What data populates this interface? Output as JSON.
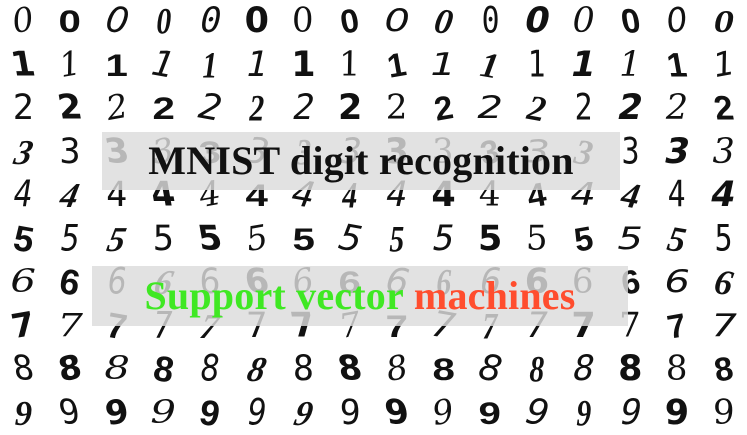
{
  "title": "MNIST digit recognition",
  "subtitle": {
    "part_1": "Support vector",
    "part_2": "machines"
  },
  "digits": {
    "rows": [
      [
        "0",
        "0",
        "0",
        "0",
        "0",
        "0",
        "0",
        "0",
        "0",
        "0",
        "0",
        "0",
        "0",
        "0",
        "0",
        "0"
      ],
      [
        "1",
        "1",
        "1",
        "1",
        "1",
        "1",
        "1",
        "1",
        "1",
        "1",
        "1",
        "1",
        "1",
        "1",
        "1",
        "1"
      ],
      [
        "2",
        "2",
        "2",
        "2",
        "2",
        "2",
        "2",
        "2",
        "2",
        "2",
        "2",
        "2",
        "2",
        "2",
        "2",
        "2"
      ],
      [
        "3",
        "3",
        "3",
        "3",
        "3",
        "3",
        "3",
        "3",
        "3",
        "3",
        "3",
        "3",
        "3",
        "3",
        "3",
        "3"
      ],
      [
        "4",
        "4",
        "4",
        "4",
        "4",
        "4",
        "4",
        "4",
        "4",
        "4",
        "4",
        "4",
        "4",
        "4",
        "4",
        "4"
      ],
      [
        "5",
        "5",
        "5",
        "5",
        "5",
        "5",
        "5",
        "5",
        "5",
        "5",
        "5",
        "5",
        "5",
        "5",
        "5",
        "5"
      ],
      [
        "6",
        "6",
        "6",
        "6",
        "6",
        "6",
        "6",
        "6",
        "6",
        "6",
        "6",
        "6",
        "6",
        "6",
        "6",
        "6"
      ],
      [
        "7",
        "7",
        "7",
        "7",
        "7",
        "7",
        "7",
        "7",
        "7",
        "7",
        "7",
        "7",
        "7",
        "7",
        "7",
        "7"
      ],
      [
        "8",
        "8",
        "8",
        "8",
        "8",
        "8",
        "8",
        "8",
        "8",
        "8",
        "8",
        "8",
        "8",
        "8",
        "8",
        "8"
      ],
      [
        "9",
        "9",
        "9",
        "9",
        "9",
        "9",
        "9",
        "9",
        "9",
        "9",
        "9",
        "9",
        "9",
        "9",
        "9",
        "9"
      ]
    ]
  },
  "colors": {
    "title_text": "#111111",
    "subtitle_green": "#3fe823",
    "subtitle_red": "#ff4d2e",
    "banner_background": "#dcdcdc"
  }
}
